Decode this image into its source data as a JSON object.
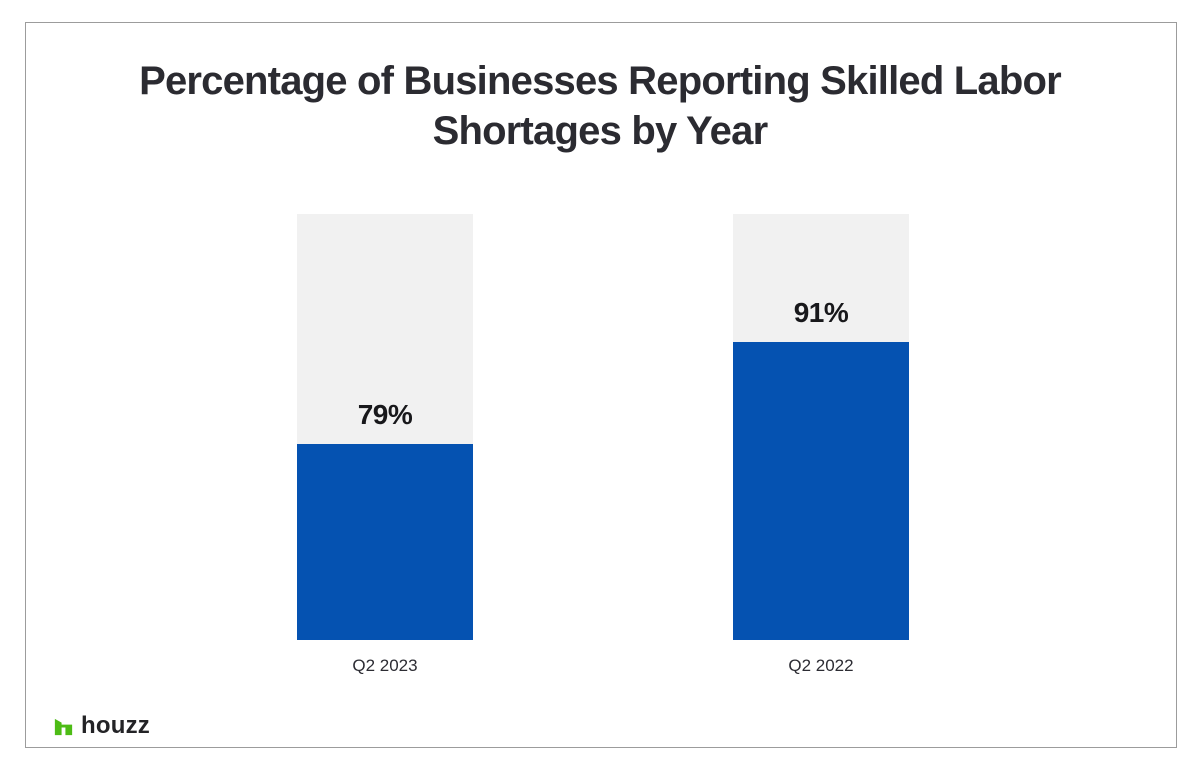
{
  "title_lines": {
    "line1": "Percentage of Businesses Reporting Skilled Labor",
    "line2": "Shortages by Year"
  },
  "chart_data": {
    "type": "bar",
    "title": "Percentage of Businesses Reporting Skilled Labor Shortages by Year",
    "categories": [
      "Q2 2023",
      "Q2 2022"
    ],
    "values": [
      79,
      91
    ],
    "unit": "%",
    "orientation": "vertical",
    "grid": false,
    "legend": false,
    "ylim": [
      0,
      100
    ],
    "colors": {
      "fill": "#0552b1",
      "track": "#f1f1f1",
      "text": "#2b2b31"
    },
    "bars": [
      {
        "category": "Q2 2023",
        "value": 79,
        "label": "79%",
        "fill_fraction_of_track": 0.46
      },
      {
        "category": "Q2 2022",
        "value": 91,
        "label": "91%",
        "fill_fraction_of_track": 0.7
      }
    ]
  },
  "branding": {
    "logo_text": "houzz",
    "logo_color": "#4dbc15"
  }
}
